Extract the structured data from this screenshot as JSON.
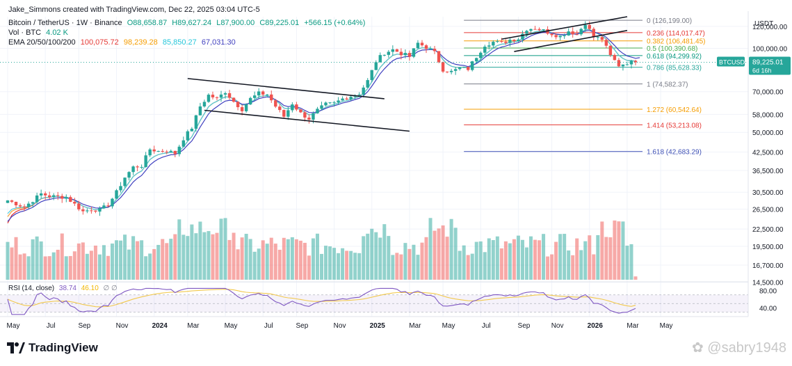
{
  "header": {
    "attribution": "Jake_Simmons created with TradingView.com, Dec 22, 2025 03:04 UTC-5",
    "symbol_line": "Bitcoin / TetherUS · 1W · Binance",
    "open": "O88,658.87",
    "high": "H89,627.24",
    "low": "L87,900.00",
    "close": "C89,225.01",
    "change": "+566.15 (+0.64%)",
    "vol_label": "Vol · BTC",
    "vol_value": "4.02 K",
    "ema_label": "EMA 20/50/100/200",
    "ema_values": [
      "100,075.72",
      "98,239.28",
      "85,850.27",
      "67,031.30"
    ]
  },
  "colors": {
    "up": "#26a69a",
    "down": "#ef5350",
    "ema20": "#e53935",
    "ema50": "#f7a23b",
    "ema100": "#4dd0e1",
    "ema200": "#3f3fbf",
    "rsi": "#7e57c2",
    "rsi_ma": "#f2c94c"
  },
  "price_badge": {
    "symbol": "BTCUSDT",
    "price": "89,225.01",
    "countdown": "6d 16h"
  },
  "rsi_label": "RSI (14, close)",
  "rsi_values": [
    "38.74",
    "46.10"
  ],
  "rsi_axis": [
    "80.00",
    "40.00"
  ],
  "fib_levels": [
    {
      "label": "0 (126,199.00)",
      "color": "#787b86"
    },
    {
      "label": "0.236 (114,017.47)",
      "color": "#e53935"
    },
    {
      "label": "0.382 (106,481.45)",
      "color": "#f59c00"
    },
    {
      "label": "0.5 (100,390.68)",
      "color": "#4caf50"
    },
    {
      "label": "0.618 (94,299.92)",
      "color": "#089981"
    },
    {
      "label": "0.786 (85,628.33)",
      "color": "#26a69a"
    },
    {
      "label": "1 (74,582.37)",
      "color": "#787b86"
    },
    {
      "label": "1.272 (60,542.64)",
      "color": "#f59c00"
    },
    {
      "label": "1.414 (53,213.08)",
      "color": "#e53935"
    },
    {
      "label": "1.618 (42,683.29)",
      "color": "#3f51b5"
    }
  ],
  "brand": "TradingView",
  "watermark": "@sabry1948",
  "chart_data": {
    "type": "candlestick",
    "title": "Bitcoin / TetherUS · 1W · Binance",
    "currency": "USDT",
    "y_scale": "log",
    "ylim": [
      13500,
      130000
    ],
    "y_ticks": [
      "120,000.00",
      "100,000.00",
      "70,000.00",
      "58,000.00",
      "50,000.00",
      "42,500.00",
      "36,500.00",
      "30,500.00",
      "26,500.00",
      "22,500.00",
      "19,500.00",
      "16,700.00",
      "14,500.00"
    ],
    "x_ticks": [
      "May",
      "Jul",
      "Sep",
      "Nov",
      "2024",
      "Mar",
      "May",
      "Jul",
      "Sep",
      "Nov",
      "2025",
      "Mar",
      "May",
      "Jul",
      "Sep",
      "Nov",
      "2026",
      "Mar",
      "May"
    ],
    "period_start": "2023-05",
    "anchor_close": [
      [
        0,
        28500
      ],
      [
        4,
        27000
      ],
      [
        8,
        30100
      ],
      [
        10,
        29500
      ],
      [
        14,
        29300
      ],
      [
        18,
        26000
      ],
      [
        20,
        26500
      ],
      [
        22,
        26300
      ],
      [
        24,
        27500
      ],
      [
        26,
        30500
      ],
      [
        28,
        34500
      ],
      [
        30,
        37500
      ],
      [
        32,
        38000
      ],
      [
        34,
        43500
      ],
      [
        36,
        42800
      ],
      [
        38,
        43000
      ],
      [
        40,
        42000
      ],
      [
        42,
        47500
      ],
      [
        44,
        52000
      ],
      [
        46,
        62000
      ],
      [
        48,
        68000
      ],
      [
        50,
        66000
      ],
      [
        52,
        70000
      ],
      [
        54,
        64500
      ],
      [
        56,
        60500
      ],
      [
        58,
        66000
      ],
      [
        60,
        69000
      ],
      [
        62,
        68500
      ],
      [
        64,
        62000
      ],
      [
        66,
        57000
      ],
      [
        68,
        63500
      ],
      [
        70,
        58500
      ],
      [
        72,
        56000
      ],
      [
        74,
        60000
      ],
      [
        76,
        63000
      ],
      [
        78,
        63500
      ],
      [
        80,
        66000
      ],
      [
        82,
        67500
      ],
      [
        84,
        69000
      ],
      [
        86,
        76500
      ],
      [
        88,
        90000
      ],
      [
        90,
        96500
      ],
      [
        92,
        99000
      ],
      [
        94,
        96000
      ],
      [
        96,
        93500
      ],
      [
        98,
        104500
      ],
      [
        100,
        101000
      ],
      [
        102,
        96500
      ],
      [
        104,
        84000
      ],
      [
        106,
        82500
      ],
      [
        108,
        85000
      ],
      [
        110,
        84500
      ],
      [
        112,
        93500
      ],
      [
        114,
        103000
      ],
      [
        116,
        105500
      ],
      [
        118,
        104500
      ],
      [
        120,
        107500
      ],
      [
        122,
        108500
      ],
      [
        124,
        117500
      ],
      [
        126,
        118500
      ],
      [
        128,
        116000
      ],
      [
        130,
        113000
      ],
      [
        132,
        110500
      ],
      [
        134,
        115500
      ],
      [
        136,
        112500
      ],
      [
        138,
        123500
      ],
      [
        140,
        110000
      ],
      [
        142,
        108000
      ],
      [
        144,
        94000
      ],
      [
        146,
        87000
      ],
      [
        148,
        89000
      ],
      [
        150,
        89225
      ]
    ],
    "volume_scale": "relative 0-1",
    "ema_periods": [
      20,
      50,
      100,
      200
    ],
    "ema_last": [
      100075.72,
      98239.28,
      85850.27,
      67031.3
    ],
    "fibonacci": [
      {
        "ratio": 0,
        "price": 126199.0
      },
      {
        "ratio": 0.236,
        "price": 114017.47
      },
      {
        "ratio": 0.382,
        "price": 106481.45
      },
      {
        "ratio": 0.5,
        "price": 100390.68
      },
      {
        "ratio": 0.618,
        "price": 94299.92
      },
      {
        "ratio": 0.786,
        "price": 85628.33
      },
      {
        "ratio": 1,
        "price": 74582.37
      },
      {
        "ratio": 1.272,
        "price": 60542.64
      },
      {
        "ratio": 1.414,
        "price": 53213.08
      },
      {
        "ratio": 1.618,
        "price": 42683.29
      }
    ],
    "trend_channels": [
      {
        "name": "2024 descending channel",
        "upper": [
          [
            43,
            78000
          ],
          [
            90,
            66000
          ]
        ],
        "lower": [
          [
            47,
            60000
          ],
          [
            96,
            50500
          ]
        ]
      },
      {
        "name": "2025 ascending channel",
        "upper": [
          [
            118,
            108000
          ],
          [
            148,
            130000
          ]
        ],
        "lower": [
          [
            121,
            97500
          ],
          [
            148,
            116000
          ]
        ]
      }
    ],
    "rsi": {
      "period": 14,
      "last": 38.74,
      "ma": 46.1,
      "ylim": [
        20,
        100
      ],
      "bands": [
        30,
        70
      ]
    }
  }
}
